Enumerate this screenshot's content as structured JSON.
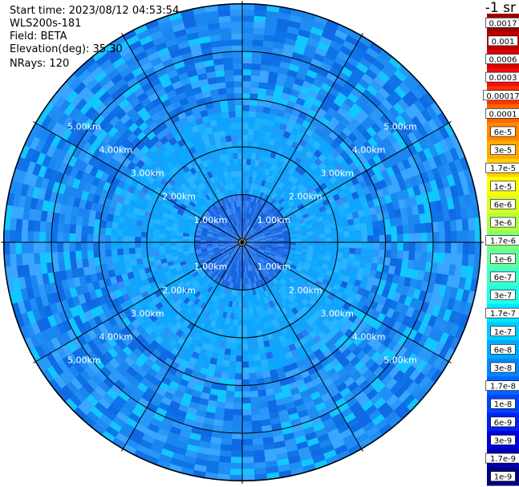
{
  "header": {
    "start_time": "Start time: 2023/08/12 04:53:54",
    "instrument": "WLS200s-181",
    "field": "Field: BETA",
    "elevation": "Elevation(deg): 35.30",
    "nrays": "NRays: 120"
  },
  "colorbar": {
    "unit_label": "-1 sr",
    "entries": [
      {
        "label": "0.0017",
        "color": "#a00000"
      },
      {
        "label": "0.001",
        "color": "#c00000"
      },
      {
        "label": "0.0006",
        "color": "#dd0000"
      },
      {
        "label": "0.0003",
        "color": "#f01010"
      },
      {
        "label": "0.00017",
        "color": "#ff3300"
      },
      {
        "label": "0.0001",
        "color": "#ff6600"
      },
      {
        "label": "6e-5",
        "color": "#ff8800"
      },
      {
        "label": "3e-5",
        "color": "#ffaa00"
      },
      {
        "label": "1.7e-5",
        "color": "#ffd000"
      },
      {
        "label": "1e-5",
        "color": "#ffff00"
      },
      {
        "label": "6e-6",
        "color": "#d8ff20"
      },
      {
        "label": "3e-6",
        "color": "#b0ff40"
      },
      {
        "label": "1.7e-6",
        "color": "#80ff70"
      },
      {
        "label": "1e-6",
        "color": "#60ffa0"
      },
      {
        "label": "6e-7",
        "color": "#40ffc8"
      },
      {
        "label": "3e-7",
        "color": "#20ffe8"
      },
      {
        "label": "1.7e-7",
        "color": "#00e8ff"
      },
      {
        "label": "1e-7",
        "color": "#00ccff"
      },
      {
        "label": "6e-8",
        "color": "#00aaff"
      },
      {
        "label": "3e-8",
        "color": "#0088ff"
      },
      {
        "label": "1.7e-8",
        "color": "#0066ff"
      },
      {
        "label": "1e-8",
        "color": "#0044ff"
      },
      {
        "label": "6e-9",
        "color": "#0022f0"
      },
      {
        "label": "3e-9",
        "color": "#0000e0"
      },
      {
        "label": "1.7e-9",
        "color": "#0000b0"
      },
      {
        "label": "1e-9",
        "color": "#000080"
      }
    ]
  },
  "chart_data": {
    "type": "heatmap",
    "projection": "polar-ppi",
    "field": "BETA",
    "elevation_deg": 35.3,
    "n_rays": 120,
    "range_rings_km": [
      1,
      2,
      3,
      4,
      5
    ],
    "ring_labels": [
      "1.00km",
      "2.00km",
      "3.00km",
      "4.00km",
      "5.00km"
    ],
    "spoke_angles_deg": [
      0,
      30,
      60,
      90,
      120,
      150,
      180,
      210,
      240,
      270,
      300,
      330
    ],
    "max_range_km": 5.0,
    "typical_value_by_range": [
      {
        "range_km": [
          0.0,
          1.0
        ],
        "level": "1e-8"
      },
      {
        "range_km": [
          1.0,
          2.0
        ],
        "level": "6e-8"
      },
      {
        "range_km": [
          2.0,
          3.0
        ],
        "level": "6e-8"
      },
      {
        "range_km": [
          3.0,
          5.0
        ],
        "level": "3e-8"
      }
    ]
  }
}
